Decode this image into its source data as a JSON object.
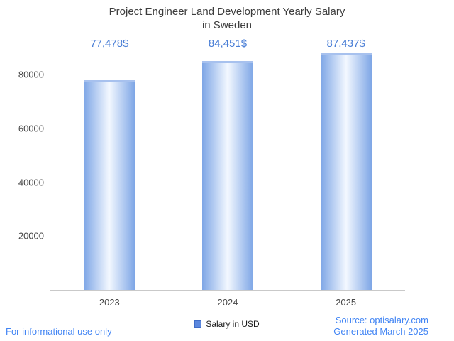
{
  "chart_data": {
    "type": "bar",
    "title": "Project Engineer Land Development Yearly Salary in Sweden",
    "title_lines": [
      "Project Engineer Land Development Yearly Salary",
      "in Sweden"
    ],
    "categories": [
      "2023",
      "2024",
      "2025"
    ],
    "values": [
      77478,
      84451,
      87437
    ],
    "value_labels": [
      "77,478$",
      "84,451$",
      "87,437$"
    ],
    "xlabel": "",
    "ylabel": "",
    "y_ticks": [
      20000,
      40000,
      60000,
      80000
    ],
    "ylim": [
      0,
      88000
    ],
    "grid": false,
    "legend": "Salary in USD",
    "legend_position": "bottom"
  },
  "footer": {
    "left": "For informational use only",
    "source": "Source: optisalary.com",
    "generated": "Generated March 2025"
  },
  "colors": {
    "title_color": "#3d3d3d",
    "tick_color": "#474747",
    "axis_color": "#c9c9c9",
    "value_color": "#4b7fd6",
    "footer_color": "#4285f4",
    "bar_edge": "#7ea6e6",
    "bar_center": "#f3f8ff",
    "bar_top": "#a7c1ee",
    "legend_fill": "#5b87de",
    "legend_border": "#3f6cc7"
  }
}
